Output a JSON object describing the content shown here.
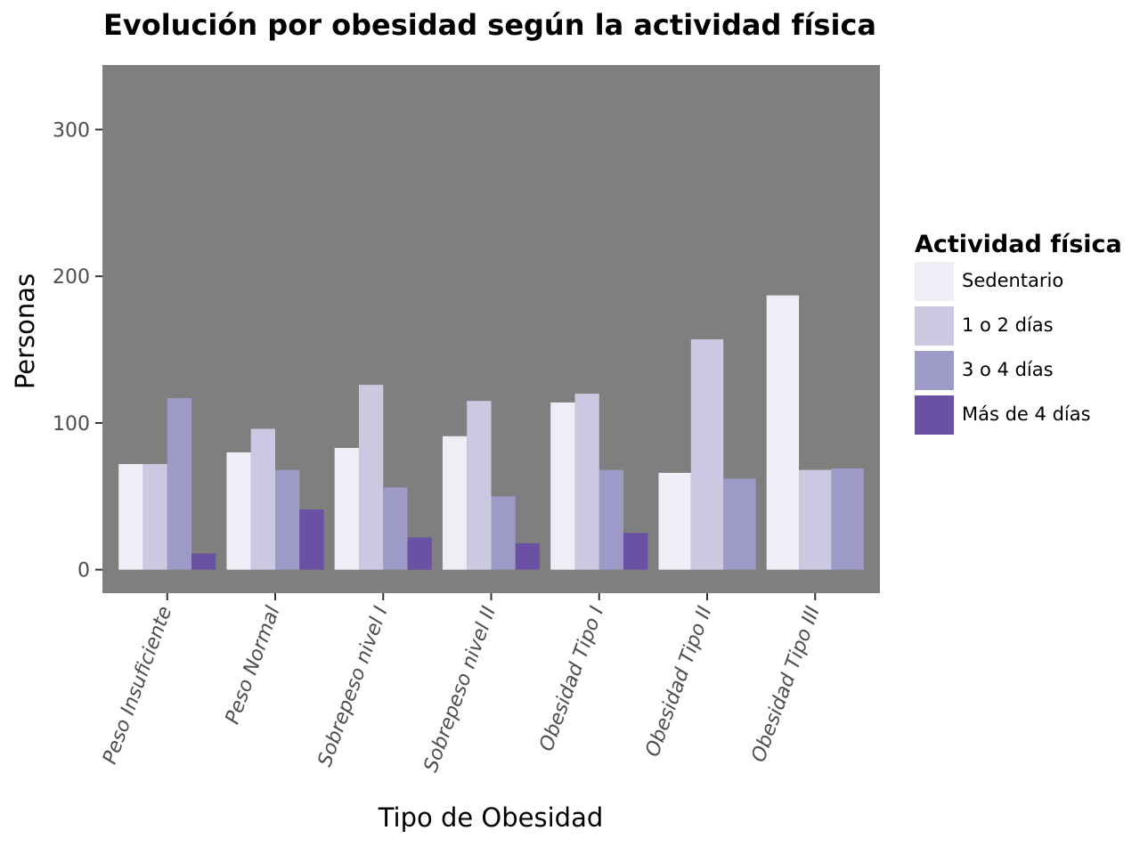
{
  "chart_data": {
    "type": "bar",
    "title": "Evolución por obesidad según la actividad física",
    "xlabel": "Tipo de Obesidad",
    "ylabel": "Personas",
    "ylim": [
      -16,
      344
    ],
    "yticks": [
      0,
      100,
      200,
      300
    ],
    "grid": false,
    "legend_title": "Actividad física",
    "legend_position": "right",
    "categories": [
      "Peso Insuficiente",
      "Peso Normal",
      "Sobrepeso nivel I",
      "Sobrepeso nivel II",
      "Obesidad Tipo I",
      "Obesidad Tipo II",
      "Obesidad Tipo III"
    ],
    "series": [
      {
        "name": "Sedentario",
        "color": "#efedf5",
        "values": [
          72,
          80,
          83,
          91,
          114,
          66,
          187
        ]
      },
      {
        "name": "1 o 2 días",
        "color": "#cbc9e2",
        "values": [
          72,
          96,
          126,
          115,
          120,
          157,
          68
        ]
      },
      {
        "name": "3 o 4 días",
        "color": "#9e9ac8",
        "values": [
          117,
          68,
          56,
          50,
          68,
          62,
          69
        ]
      },
      {
        "name": "Más de 4 días",
        "color": "#6a51a3",
        "values": [
          11,
          41,
          22,
          18,
          25,
          null,
          null
        ]
      }
    ],
    "panel_color": "#7f7f7f"
  }
}
